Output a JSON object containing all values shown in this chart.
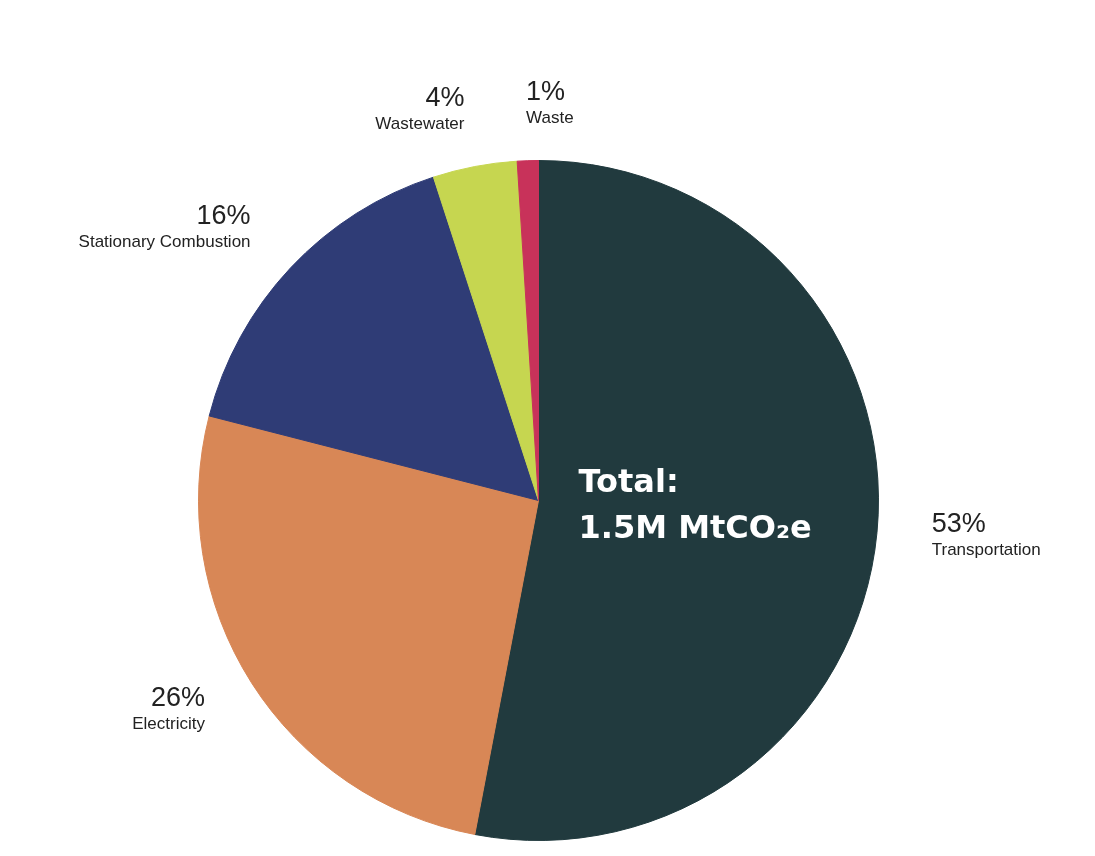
{
  "chart_data": {
    "type": "pie",
    "categories": [
      "Transportation",
      "Electricity",
      "Stationary Combustion",
      "Wastewater",
      "Waste"
    ],
    "values": [
      53,
      26,
      16,
      4,
      1
    ],
    "value_labels": [
      "53%",
      "26%",
      "16%",
      "4%",
      "1%"
    ],
    "colors": [
      "#213a3e",
      "#d88756",
      "#2f3c76",
      "#c6d650",
      "#c8325a"
    ],
    "annotations": [
      "Total:",
      "1.5M MtCO₂e"
    ]
  }
}
